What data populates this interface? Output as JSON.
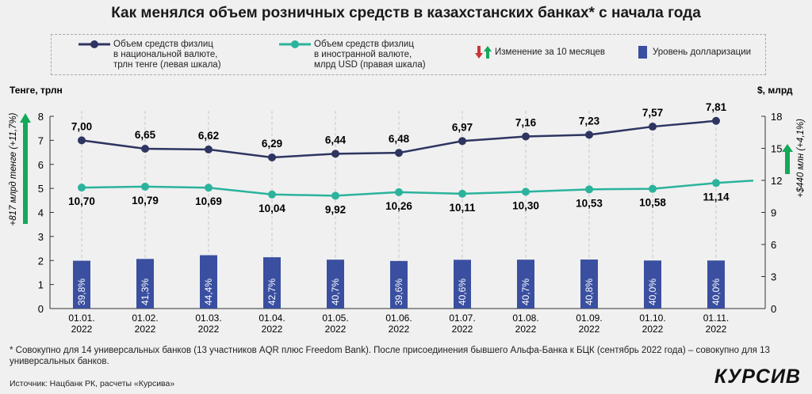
{
  "title": "Как менялся объем розничных средств в казахстанских банках* с начала года",
  "legend": {
    "navy": "Объем средств физлиц в национальной валюте, трлн тенге (левая шкала)",
    "navy_lines": [
      "Объем средств физлиц",
      "в национальной валюте,",
      "трлн тенге (левая шкала)"
    ],
    "teal_lines": [
      "Объем средств физлиц",
      "в иностранной валюте,",
      "млрд USD (правая шкала)"
    ],
    "change": "Изменение за 10 месяцев",
    "bars": "Уровень долларизации"
  },
  "annotations": {
    "left": "+817 млрд тенге (+11,7%)",
    "right": "+$440 млн (+4,1%)"
  },
  "footnote": "* Совокупно для 14 универсальных банков (13 участников AQR плюс Freedom Bank). После присоединения бывшего Альфа-Банка к БЦК (сентябрь 2022 года) – совокупно для 13 универсальных банков.",
  "source": "Источник: Нацбанк РК, расчеты «Курсива»",
  "logo": "КУРСИВ",
  "colors": {
    "navy": "#2e3561",
    "teal": "#2bb39c",
    "bar": "#3a4fa0",
    "up": "#13a85a",
    "down": "#c9363a"
  },
  "chart_data": {
    "type": "bar+line",
    "categories": [
      "01.01.\n2022",
      "01.02.\n2022",
      "01.03.\n2022",
      "01.04.\n2022",
      "01.05.\n2022",
      "01.06.\n2022",
      "01.07.\n2022",
      "01.08.\n2022",
      "01.09.\n2022",
      "01.10.\n2022",
      "01.11.\n2022"
    ],
    "left_axis": {
      "label": "Тенге, трлн",
      "range": [
        0,
        8
      ],
      "ticks": [
        0,
        1,
        2,
        3,
        4,
        5,
        6,
        7,
        8
      ]
    },
    "right_axis": {
      "label": "$, млрд",
      "range": [
        0,
        18
      ],
      "ticks": [
        0,
        3,
        6,
        9,
        12,
        15,
        18
      ]
    },
    "series": [
      {
        "name": "Объем средств физлиц в национальной валюте, трлн тенге (левая шкала)",
        "type": "line",
        "axis": "left",
        "values": [
          7.0,
          6.65,
          6.62,
          6.29,
          6.44,
          6.48,
          6.97,
          7.16,
          7.23,
          7.57,
          7.81
        ],
        "labels": [
          "7,00",
          "6,65",
          "6,62",
          "6,29",
          "6,44",
          "6,48",
          "6,97",
          "7,16",
          "7,23",
          "7,57",
          "7,81"
        ]
      },
      {
        "name": "Объем средств физлиц в иностранной валюте, млрд USD (правая шкала)",
        "type": "line",
        "axis": "right",
        "values": [
          10.7,
          10.79,
          10.69,
          10.04,
          9.92,
          10.26,
          10.11,
          10.3,
          10.53,
          10.58,
          11.14
        ],
        "labels": [
          "10,70",
          "10,79",
          "10,69",
          "10,04",
          "9,92",
          "10,26",
          "10,11",
          "10,30",
          "10,53",
          "10,58",
          "11,14"
        ]
      },
      {
        "name": "Уровень долларизации",
        "type": "bar",
        "unit": "%",
        "values": [
          39.8,
          41.3,
          44.4,
          42.7,
          40.7,
          39.6,
          40.6,
          40.7,
          40.8,
          40.0,
          40.0
        ],
        "labels": [
          "39,8%",
          "41,3%",
          "44,4%",
          "42,7%",
          "40,7%",
          "39,6%",
          "40,6%",
          "40,7%",
          "40,8%",
          "40,0%",
          "40,0%"
        ]
      }
    ],
    "grid": "vertical dashed per category"
  }
}
